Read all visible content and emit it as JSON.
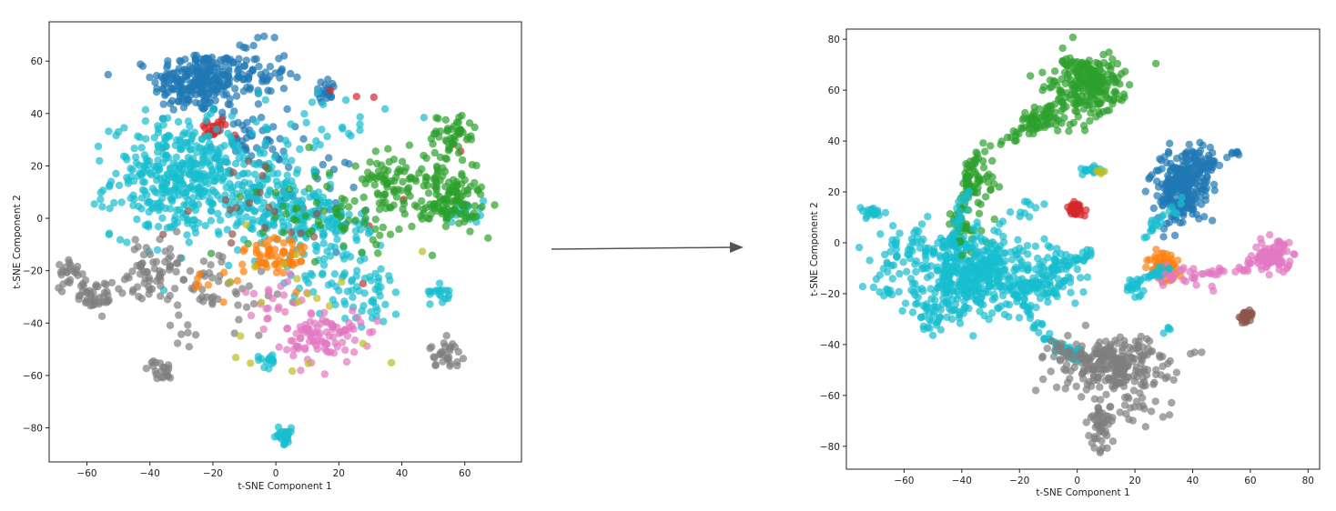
{
  "chart_data": [
    {
      "type": "scatter",
      "xlabel": "t-SNE Component 1",
      "ylabel": "t-SNE Component 2",
      "xlim": [
        -72,
        78
      ],
      "ylim": [
        -93,
        75
      ],
      "xticks": [
        -60,
        -40,
        -20,
        0,
        20,
        40,
        60
      ],
      "yticks": [
        -80,
        -60,
        -40,
        -20,
        0,
        20,
        40,
        60
      ],
      "clusters": [
        {
          "color": "#1f77b4",
          "cx": -25,
          "cy": 52,
          "sx": 7,
          "sy": 6,
          "n": 220
        },
        {
          "color": "#1f77b4",
          "cx": -10,
          "cy": 55,
          "sx": 7,
          "sy": 6,
          "n": 80
        },
        {
          "color": "#1f77b4",
          "cx": 16,
          "cy": 49,
          "sx": 2,
          "sy": 2,
          "n": 20
        },
        {
          "color": "#1f77b4",
          "cx": -8,
          "cy": 30,
          "sx": 6,
          "sy": 6,
          "n": 50
        },
        {
          "color": "#1f77b4",
          "cx": 10,
          "cy": 10,
          "sx": 10,
          "sy": 8,
          "n": 25
        },
        {
          "color": "#d62728",
          "cx": -20,
          "cy": 34,
          "sx": 2.5,
          "sy": 2,
          "n": 22
        },
        {
          "color": "#d62728",
          "cx": 20,
          "cy": 48,
          "sx": 8,
          "sy": 6,
          "n": 3
        },
        {
          "color": "#d62728",
          "cx": 40,
          "cy": 10,
          "sx": 15,
          "sy": 15,
          "n": 6
        },
        {
          "color": "#17becf",
          "cx": -30,
          "cy": 15,
          "sx": 11,
          "sy": 11,
          "n": 380
        },
        {
          "color": "#17becf",
          "cx": -5,
          "cy": 10,
          "sx": 10,
          "sy": 10,
          "n": 140
        },
        {
          "color": "#17becf",
          "cx": 10,
          "cy": 0,
          "sx": 8,
          "sy": 6,
          "n": 90
        },
        {
          "color": "#17becf",
          "cx": 20,
          "cy": -15,
          "sx": 10,
          "sy": 10,
          "n": 90
        },
        {
          "color": "#17becf",
          "cx": 30,
          "cy": -30,
          "sx": 5,
          "sy": 6,
          "n": 30
        },
        {
          "color": "#17becf",
          "cx": 53,
          "cy": -28,
          "sx": 2,
          "sy": 2,
          "n": 18
        },
        {
          "color": "#17becf",
          "cx": 2,
          "cy": -83,
          "sx": 2,
          "sy": 1.5,
          "n": 25
        },
        {
          "color": "#17becf",
          "cx": -2,
          "cy": -54,
          "sx": 2,
          "sy": 1.5,
          "n": 15
        },
        {
          "color": "#17becf",
          "cx": 60,
          "cy": 2,
          "sx": 3,
          "sy": 3,
          "n": 15
        },
        {
          "color": "#17becf",
          "cx": 15,
          "cy": 35,
          "sx": 10,
          "sy": 8,
          "n": 30
        },
        {
          "color": "#2ca02c",
          "cx": 37,
          "cy": 15,
          "sx": 5,
          "sy": 5,
          "n": 60
        },
        {
          "color": "#2ca02c",
          "cx": 54,
          "cy": 12,
          "sx": 5,
          "sy": 6,
          "n": 80
        },
        {
          "color": "#2ca02c",
          "cx": 56,
          "cy": 32,
          "sx": 4,
          "sy": 4,
          "n": 45
        },
        {
          "color": "#2ca02c",
          "cx": 57,
          "cy": 4,
          "sx": 5,
          "sy": 4,
          "n": 50
        },
        {
          "color": "#2ca02c",
          "cx": 15,
          "cy": 5,
          "sx": 12,
          "sy": 10,
          "n": 50
        },
        {
          "color": "#2ca02c",
          "cx": 40,
          "cy": 0,
          "sx": 12,
          "sy": 10,
          "n": 40
        },
        {
          "color": "#7f7f7f",
          "cx": -65,
          "cy": -20,
          "sx": 2.5,
          "sy": 3,
          "n": 25
        },
        {
          "color": "#7f7f7f",
          "cx": -57,
          "cy": -30,
          "sx": 3,
          "sy": 3,
          "n": 40
        },
        {
          "color": "#7f7f7f",
          "cx": -40,
          "cy": -20,
          "sx": 5,
          "sy": 5,
          "n": 60
        },
        {
          "color": "#7f7f7f",
          "cx": -20,
          "cy": -25,
          "sx": 10,
          "sy": 8,
          "n": 50
        },
        {
          "color": "#7f7f7f",
          "cx": -37,
          "cy": -58,
          "sx": 2,
          "sy": 2,
          "n": 22
        },
        {
          "color": "#7f7f7f",
          "cx": 54,
          "cy": -52,
          "sx": 2.5,
          "sy": 2.5,
          "n": 30
        },
        {
          "color": "#7f7f7f",
          "cx": -28,
          "cy": -42,
          "sx": 3,
          "sy": 3,
          "n": 8
        },
        {
          "color": "#ff7f0e",
          "cx": 0,
          "cy": -15,
          "sx": 5,
          "sy": 5,
          "n": 60
        },
        {
          "color": "#ff7f0e",
          "cx": -15,
          "cy": -22,
          "sx": 6,
          "sy": 5,
          "n": 10
        },
        {
          "color": "#e377c2",
          "cx": 15,
          "cy": -45,
          "sx": 6,
          "sy": 5,
          "n": 100
        },
        {
          "color": "#e377c2",
          "cx": 0,
          "cy": -30,
          "sx": 5,
          "sy": 5,
          "n": 20
        },
        {
          "color": "#8c564b",
          "cx": -8,
          "cy": 5,
          "sx": 15,
          "sy": 10,
          "n": 20
        },
        {
          "color": "#bcbd22",
          "cx": 10,
          "cy": -30,
          "sx": 15,
          "sy": 15,
          "n": 20
        }
      ]
    },
    {
      "type": "scatter",
      "xlabel": "t-SNE Component 1",
      "ylabel": "t-SNE Component 2",
      "xlim": [
        -80,
        84
      ],
      "ylim": [
        -89,
        84
      ],
      "xticks": [
        -60,
        -40,
        -20,
        0,
        20,
        40,
        60,
        80
      ],
      "yticks": [
        -80,
        -60,
        -40,
        -20,
        0,
        20,
        40,
        60,
        80
      ],
      "clusters": [
        {
          "color": "#2ca02c",
          "cx": 3,
          "cy": 62,
          "sx": 6,
          "sy": 6,
          "n": 230
        },
        {
          "color": "#2ca02c",
          "cx": -12,
          "cy": 48,
          "sx": 4,
          "sy": 3,
          "n": 55
        },
        {
          "color": "#2ca02c",
          "cx": -35,
          "cy": 22,
          "sx": 4,
          "sy": 6,
          "n": 40
        },
        {
          "color": "#2ca02c",
          "cx": -40,
          "cy": 5,
          "sx": 3,
          "sy": 4,
          "n": 25
        },
        {
          "color": "#1f77b4",
          "cx": 36,
          "cy": 22,
          "sx": 5,
          "sy": 7,
          "n": 260
        },
        {
          "color": "#1f77b4",
          "cx": 43,
          "cy": 32,
          "sx": 5,
          "sy": 3,
          "n": 40
        },
        {
          "color": "#1f77b4",
          "cx": 55,
          "cy": 35,
          "sx": 1,
          "sy": 1,
          "n": 6
        },
        {
          "color": "#17becf",
          "cx": -35,
          "cy": -12,
          "sx": 10,
          "sy": 8,
          "n": 420
        },
        {
          "color": "#17becf",
          "cx": -70,
          "cy": 12,
          "sx": 2,
          "sy": 1.5,
          "n": 20
        },
        {
          "color": "#17becf",
          "cx": -60,
          "cy": -5,
          "sx": 6,
          "sy": 6,
          "n": 60
        },
        {
          "color": "#17becf",
          "cx": -10,
          "cy": -15,
          "sx": 6,
          "sy": 5,
          "n": 90
        },
        {
          "color": "#17becf",
          "cx": -48,
          "cy": -25,
          "sx": 5,
          "sy": 5,
          "n": 50
        },
        {
          "color": "#17becf",
          "cx": 5,
          "cy": 29,
          "sx": 2,
          "sy": 1,
          "n": 15
        },
        {
          "color": "#17becf",
          "cx": -18,
          "cy": 12,
          "sx": 4,
          "sy": 3,
          "n": 10
        },
        {
          "color": "#17becf",
          "cx": -65,
          "cy": -20,
          "sx": 2,
          "sy": 1,
          "n": 6
        },
        {
          "color": "#17becf",
          "cx": 31,
          "cy": -34,
          "sx": 1,
          "sy": 1,
          "n": 4
        },
        {
          "color": "#17becf",
          "cx": 20,
          "cy": -18,
          "sx": 3,
          "sy": 2,
          "n": 10
        },
        {
          "color": "#d62728",
          "cx": 0,
          "cy": 13,
          "sx": 1.5,
          "sy": 1.5,
          "n": 28
        },
        {
          "color": "#ff7f0e",
          "cx": 30,
          "cy": -10,
          "sx": 3,
          "sy": 3,
          "n": 55
        },
        {
          "color": "#e377c2",
          "cx": 68,
          "cy": -5,
          "sx": 3.5,
          "sy": 3,
          "n": 90
        },
        {
          "color": "#e377c2",
          "cx": 38,
          "cy": -14,
          "sx": 7,
          "sy": 3,
          "n": 20
        },
        {
          "color": "#8c564b",
          "cx": 58,
          "cy": -29,
          "sx": 1.5,
          "sy": 1.5,
          "n": 25
        },
        {
          "color": "#7f7f7f",
          "cx": 12,
          "cy": -48,
          "sx": 9,
          "sy": 5,
          "n": 230
        },
        {
          "color": "#7f7f7f",
          "cx": 8,
          "cy": -72,
          "sx": 2,
          "sy": 5,
          "n": 50
        },
        {
          "color": "#7f7f7f",
          "cx": 22,
          "cy": -60,
          "sx": 6,
          "sy": 6,
          "n": 40
        },
        {
          "color": "#7f7f7f",
          "cx": 40,
          "cy": -44,
          "sx": 1,
          "sy": 1,
          "n": 3
        },
        {
          "color": "#bcbd22",
          "cx": 8,
          "cy": 28,
          "sx": 1,
          "sy": 1,
          "n": 5
        }
      ],
      "bridges": [
        {
          "color": "#2ca02c",
          "points": [
            [
              -5,
              55
            ],
            [
              -22,
              42
            ],
            [
              -36,
              33
            ],
            [
              -40,
              15
            ],
            [
              -42,
              -5
            ]
          ],
          "n": 80
        },
        {
          "color": "#17becf",
          "points": [
            [
              -38,
              25
            ],
            [
              -42,
              5
            ],
            [
              -45,
              -10
            ]
          ],
          "n": 40
        },
        {
          "color": "#17becf",
          "points": [
            [
              -20,
              -20
            ],
            [
              -12,
              -36
            ],
            [
              -5,
              -42
            ],
            [
              2,
              -45
            ]
          ],
          "n": 60
        },
        {
          "color": "#7f7f7f",
          "points": [
            [
              -10,
              -40
            ],
            [
              -2,
              -44
            ],
            [
              5,
              -46
            ]
          ],
          "n": 30
        },
        {
          "color": "#17becf",
          "points": [
            [
              -10,
              -10
            ],
            [
              0,
              -8
            ],
            [
              5,
              -3
            ]
          ],
          "n": 30
        },
        {
          "color": "#17becf",
          "points": [
            [
              22,
              0
            ],
            [
              28,
              8
            ],
            [
              36,
              16
            ]
          ],
          "n": 20
        },
        {
          "color": "#17becf",
          "points": [
            [
              17,
              -18
            ],
            [
              25,
              -14
            ],
            [
              33,
              -9
            ]
          ],
          "n": 30
        },
        {
          "color": "#e377c2",
          "points": [
            [
              30,
              -13
            ],
            [
              45,
              -12
            ],
            [
              58,
              -10
            ],
            [
              65,
              -6
            ]
          ],
          "n": 35
        }
      ]
    }
  ],
  "arrow": {
    "color": "#555555"
  }
}
